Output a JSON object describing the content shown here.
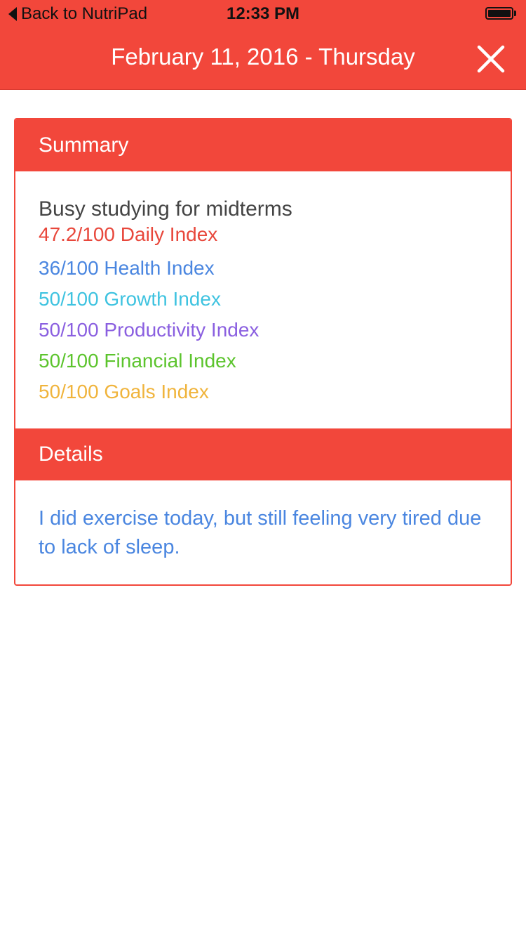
{
  "status_bar": {
    "back_label": "Back to NutriPad",
    "time": "12:33 PM"
  },
  "nav": {
    "title": "February 11, 2016 - Thursday"
  },
  "summary": {
    "header": "Summary",
    "title": "Busy studying for midterms",
    "indices": [
      {
        "text": "47.2/100 Daily Index",
        "color": "#E8473B"
      },
      {
        "text": "36/100 Health Index",
        "color": "#4A86E0"
      },
      {
        "text": "50/100 Growth Index",
        "color": "#3FC3E0"
      },
      {
        "text": "50/100 Productivity Index",
        "color": "#8A5FE0"
      },
      {
        "text": "50/100 Financial Index",
        "color": "#5CC42D"
      },
      {
        "text": "50/100 Goals Index",
        "color": "#F0B43C"
      }
    ]
  },
  "details": {
    "header": "Details",
    "text": "I did exercise today, but still feeling very tired due to lack of sleep."
  },
  "colors": {
    "accent": "#F2473B"
  },
  "icons": {
    "close": "close-icon",
    "back": "chevron-left-icon",
    "battery": "battery-icon"
  }
}
